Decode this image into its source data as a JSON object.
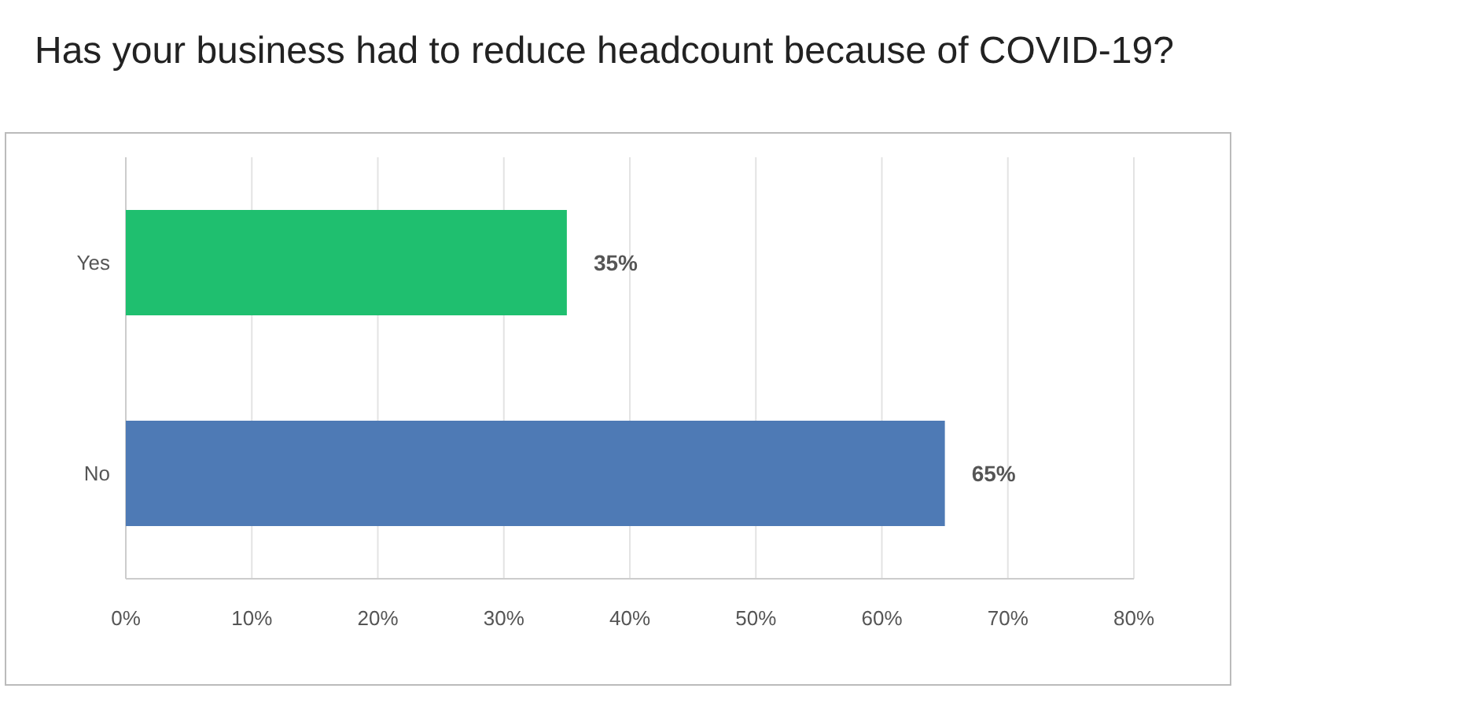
{
  "chart_data": {
    "type": "bar",
    "title": "Has your business had to reduce headcount because of COVID-19?",
    "orientation": "horizontal",
    "categories": [
      "Yes",
      "No"
    ],
    "values": [
      35,
      65
    ],
    "colors": [
      "#1fbf6f",
      "#4e7ab5"
    ],
    "value_labels": [
      "35%",
      "65%"
    ],
    "xlim": [
      0,
      80
    ],
    "xticks": [
      {
        "value": 0,
        "label": "0%"
      },
      {
        "value": 10,
        "label": "10%"
      },
      {
        "value": 20,
        "label": "20%"
      },
      {
        "value": 30,
        "label": "30%"
      },
      {
        "value": 40,
        "label": "40%"
      },
      {
        "value": 50,
        "label": "50%"
      },
      {
        "value": 60,
        "label": "60%"
      },
      {
        "value": 70,
        "label": "70%"
      },
      {
        "value": 80,
        "label": "80%"
      }
    ],
    "grid": "x"
  }
}
